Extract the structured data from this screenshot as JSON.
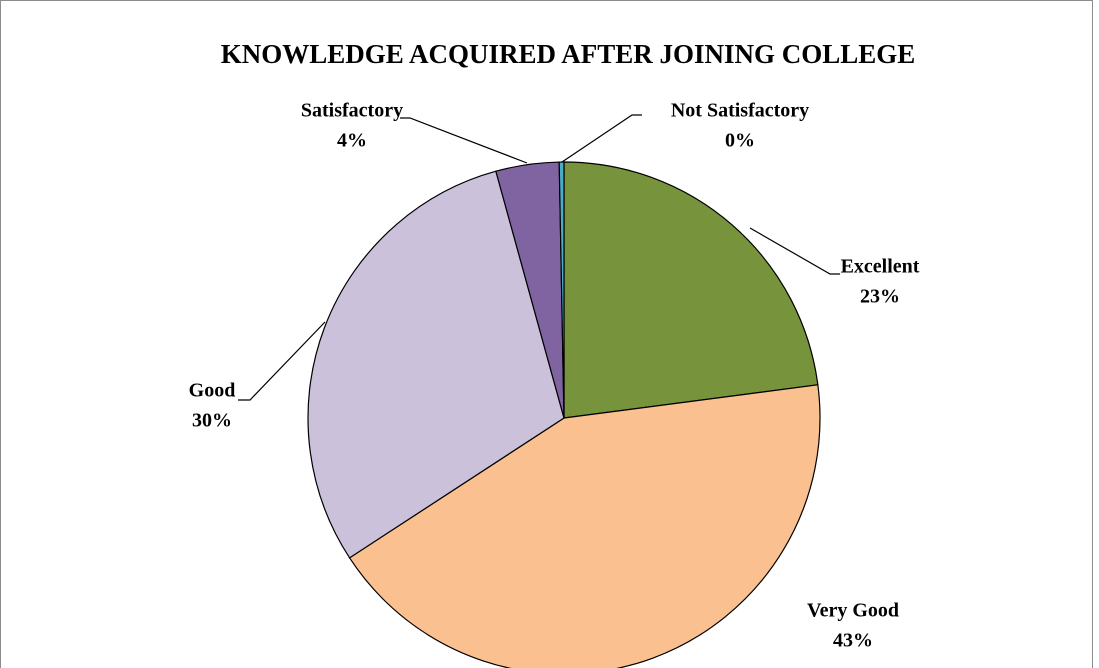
{
  "chart_data": {
    "type": "pie",
    "title": "KNOWLEDGE ACQUIRED AFTER JOINING COLLEGE",
    "categories": [
      "Excellent",
      "Very Good",
      "Good",
      "Satisfactory",
      "Not Satisfactory"
    ],
    "values": [
      23,
      43,
      30,
      4,
      0.3
    ],
    "value_labels": [
      "23%",
      "43%",
      "30%",
      "4%",
      "0%"
    ],
    "colors": [
      "#77933c",
      "#fac090",
      "#ccc1da",
      "#8064a2",
      "#4bacc6"
    ]
  }
}
